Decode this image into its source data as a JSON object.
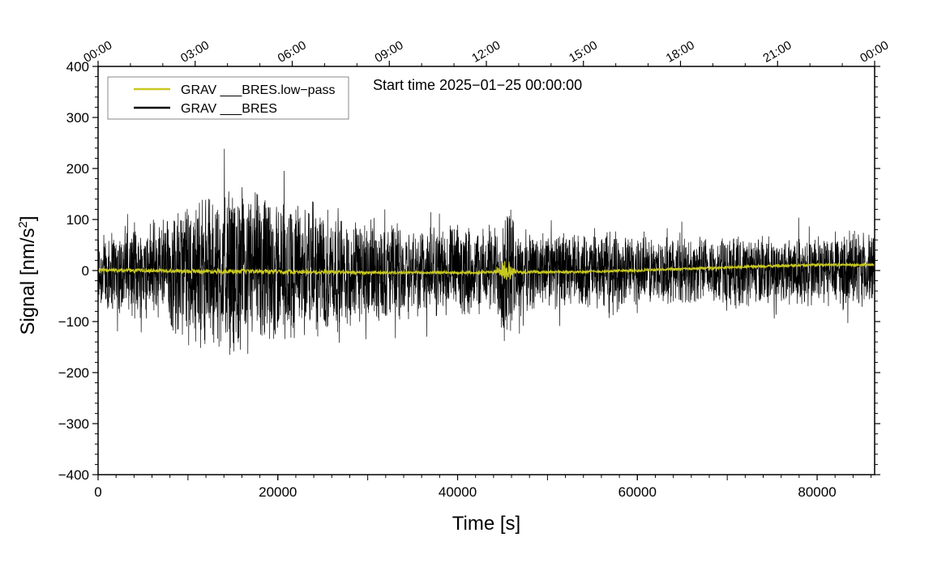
{
  "chart_data": {
    "type": "line",
    "title": "",
    "annotation": "Start time 2025−01−25 00:00:00",
    "xlabel": "Time [s]",
    "ylabel_main": "Signal [nm/s",
    "ylabel_sup": "2",
    "ylabel_end": "]",
    "xlim": [
      0,
      86400
    ],
    "ylim": [
      -400,
      400
    ],
    "x_ticks": [
      0,
      20000,
      40000,
      60000,
      80000
    ],
    "x_tick_labels": [
      "0",
      "20000",
      "40000",
      "60000",
      "80000"
    ],
    "y_ticks": [
      -400,
      -300,
      -200,
      -100,
      0,
      100,
      200,
      300,
      400
    ],
    "y_tick_labels": [
      "−400",
      "−300",
      "−200",
      "−100",
      "0",
      "100",
      "200",
      "300",
      "400"
    ],
    "top_ticks": [
      0,
      10800,
      21600,
      32400,
      43200,
      54000,
      64800,
      75600,
      86400
    ],
    "top_tick_labels": [
      "00:00",
      "03:00",
      "06:00",
      "09:00",
      "12:00",
      "15:00",
      "18:00",
      "21:00",
      "00:00"
    ],
    "legend_position": "top-left",
    "series": [
      {
        "name": "GRAV ___BRES.low−pass",
        "color": "#c8c820",
        "x": [
          0,
          5000,
          10000,
          15000,
          20000,
          25000,
          30000,
          35000,
          40000,
          44000,
          45500,
          46500,
          50000,
          55000,
          60000,
          65000,
          70000,
          75000,
          80000,
          86400
        ],
        "y": [
          1,
          0,
          -1,
          -2,
          -2,
          -3,
          -4,
          -4,
          -4,
          -3,
          0,
          -3,
          -3,
          -2,
          0,
          3,
          6,
          9,
          11,
          11
        ],
        "envelope": [
          4,
          4,
          5,
          5,
          5,
          5,
          4,
          3,
          3,
          3,
          25,
          3,
          3,
          3,
          3,
          3,
          3,
          3,
          3,
          3
        ]
      },
      {
        "name": "GRAV ___BRES",
        "color": "#000000",
        "x": [
          0,
          5000,
          10000,
          15000,
          20000,
          25000,
          30000,
          35000,
          40000,
          44000,
          45500,
          46500,
          50000,
          55000,
          60000,
          65000,
          70000,
          75000,
          80000,
          86400
        ],
        "y": [
          0,
          0,
          0,
          0,
          0,
          0,
          0,
          0,
          0,
          0,
          0,
          0,
          0,
          0,
          0,
          0,
          0,
          0,
          0,
          0
        ],
        "envelope": [
          90,
          100,
          150,
          180,
          160,
          140,
          110,
          100,
          95,
          90,
          170,
          90,
          80,
          80,
          75,
          70,
          75,
          75,
          80,
          80
        ]
      }
    ]
  }
}
